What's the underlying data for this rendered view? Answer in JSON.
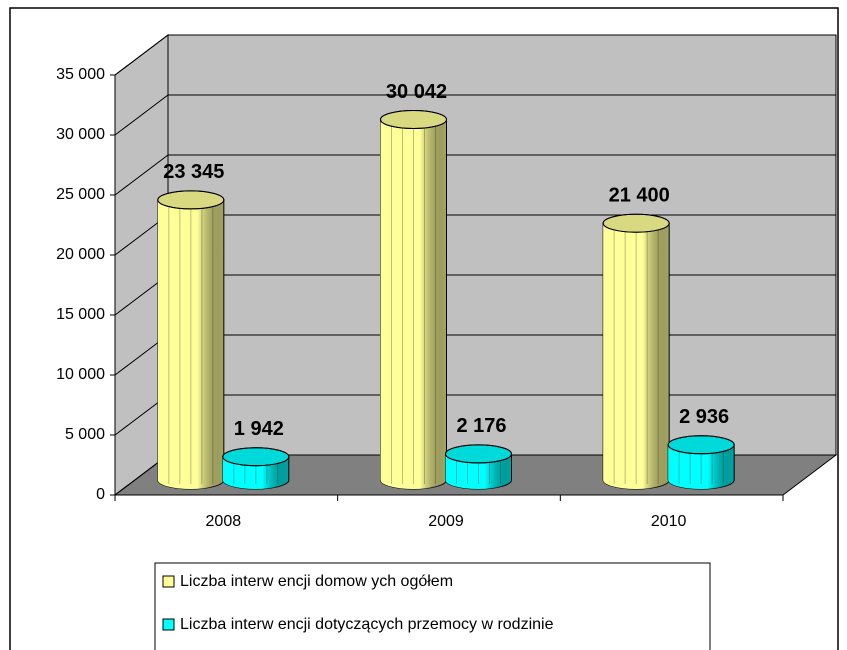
{
  "chart_data": {
    "type": "bar3d",
    "categories": [
      "2008",
      "2009",
      "2010"
    ],
    "series": [
      {
        "name": "Liczba interw encji domow ych ogółem",
        "color": "#ffff99",
        "values": [
          23345,
          30042,
          21400
        ],
        "value_labels": [
          "23 345",
          "30 042",
          "21 400"
        ]
      },
      {
        "name": "Liczba interw encji dotyczących przemocy w  rodzinie",
        "color": "#00ffff",
        "values": [
          1942,
          2176,
          2936
        ],
        "value_labels": [
          "1 942",
          "2 176",
          "2 936"
        ]
      }
    ],
    "ylim": [
      0,
      35000
    ],
    "yticks": [
      {
        "value": 0,
        "label": "0"
      },
      {
        "value": 5000,
        "label": "5 000"
      },
      {
        "value": 10000,
        "label": "10 000"
      },
      {
        "value": 15000,
        "label": "15 000"
      },
      {
        "value": 20000,
        "label": "20 000"
      },
      {
        "value": 25000,
        "label": "25 000"
      },
      {
        "value": 30000,
        "label": "30 000"
      },
      {
        "value": 35000,
        "label": "35 000"
      }
    ],
    "grid": true,
    "legend": "bottom"
  }
}
